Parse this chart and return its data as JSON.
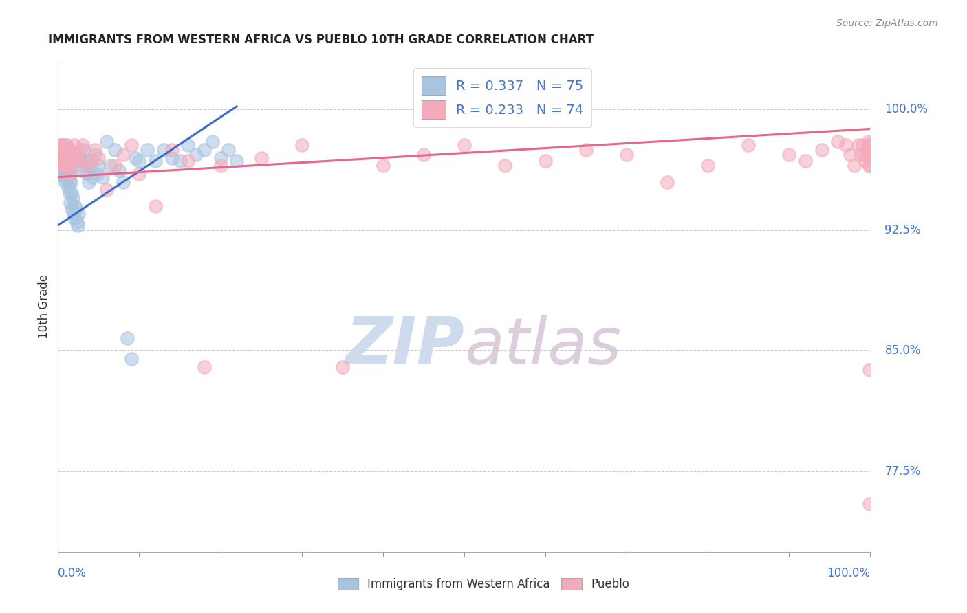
{
  "title": "IMMIGRANTS FROM WESTERN AFRICA VS PUEBLO 10TH GRADE CORRELATION CHART",
  "source": "Source: ZipAtlas.com",
  "ylabel": "10th Grade",
  "ytick_labels": [
    "77.5%",
    "85.0%",
    "92.5%",
    "100.0%"
  ],
  "ytick_values": [
    0.775,
    0.85,
    0.925,
    1.0
  ],
  "xlim": [
    0.0,
    1.0
  ],
  "ylim": [
    0.725,
    1.03
  ],
  "legend1_label": "R = 0.337   N = 75",
  "legend2_label": "R = 0.233   N = 74",
  "legend_x_label": "Immigrants from Western Africa",
  "legend_y_label": "Pueblo",
  "blue_color": "#A8C4E0",
  "pink_color": "#F4AABB",
  "blue_line_color": "#3B6CC7",
  "pink_line_color": "#E8668A",
  "title_color": "#222222",
  "axis_label_color": "#4477CC",
  "watermark_zip_color": "#C8D8EC",
  "watermark_atlas_color": "#D8C8D8",
  "blue_scatter_x": [
    0.001,
    0.002,
    0.002,
    0.003,
    0.003,
    0.004,
    0.004,
    0.005,
    0.005,
    0.006,
    0.006,
    0.007,
    0.007,
    0.008,
    0.008,
    0.009,
    0.009,
    0.01,
    0.01,
    0.011,
    0.011,
    0.012,
    0.012,
    0.013,
    0.013,
    0.014,
    0.014,
    0.015,
    0.015,
    0.016,
    0.017,
    0.017,
    0.018,
    0.019,
    0.02,
    0.021,
    0.022,
    0.023,
    0.024,
    0.025,
    0.026,
    0.027,
    0.028,
    0.03,
    0.032,
    0.034,
    0.036,
    0.038,
    0.04,
    0.042,
    0.045,
    0.048,
    0.05,
    0.055,
    0.06,
    0.065,
    0.07,
    0.075,
    0.08,
    0.085,
    0.09,
    0.095,
    0.1,
    0.11,
    0.12,
    0.13,
    0.14,
    0.15,
    0.16,
    0.17,
    0.18,
    0.19,
    0.2,
    0.21,
    0.22
  ],
  "blue_scatter_y": [
    0.96,
    0.97,
    0.962,
    0.975,
    0.968,
    0.972,
    0.965,
    0.978,
    0.96,
    0.97,
    0.963,
    0.968,
    0.958,
    0.975,
    0.962,
    0.97,
    0.955,
    0.968,
    0.978,
    0.96,
    0.965,
    0.958,
    0.952,
    0.96,
    0.965,
    0.955,
    0.948,
    0.96,
    0.942,
    0.955,
    0.948,
    0.938,
    0.945,
    0.935,
    0.932,
    0.94,
    0.938,
    0.93,
    0.928,
    0.935,
    0.968,
    0.97,
    0.965,
    0.962,
    0.975,
    0.968,
    0.96,
    0.955,
    0.965,
    0.958,
    0.972,
    0.96,
    0.965,
    0.958,
    0.98,
    0.965,
    0.975,
    0.962,
    0.955,
    0.858,
    0.845,
    0.97,
    0.968,
    0.975,
    0.968,
    0.975,
    0.97,
    0.968,
    0.978,
    0.972,
    0.975,
    0.98,
    0.97,
    0.975,
    0.968
  ],
  "pink_scatter_x": [
    0.001,
    0.002,
    0.003,
    0.003,
    0.004,
    0.005,
    0.006,
    0.007,
    0.008,
    0.009,
    0.01,
    0.011,
    0.012,
    0.013,
    0.014,
    0.015,
    0.016,
    0.018,
    0.02,
    0.022,
    0.025,
    0.028,
    0.03,
    0.035,
    0.04,
    0.045,
    0.05,
    0.06,
    0.07,
    0.08,
    0.09,
    0.1,
    0.12,
    0.14,
    0.16,
    0.18,
    0.2,
    0.25,
    0.3,
    0.35,
    0.4,
    0.45,
    0.5,
    0.55,
    0.6,
    0.65,
    0.7,
    0.75,
    0.8,
    0.85,
    0.9,
    0.92,
    0.94,
    0.96,
    0.97,
    0.975,
    0.98,
    0.985,
    0.988,
    0.99,
    0.992,
    0.994,
    0.996,
    0.998,
    0.999,
    0.999,
    0.999,
    0.999,
    0.999,
    0.999,
    0.999,
    0.999,
    0.999,
    0.999
  ],
  "pink_scatter_y": [
    0.978,
    0.968,
    0.975,
    0.965,
    0.97,
    0.978,
    0.972,
    0.965,
    0.975,
    0.968,
    0.972,
    0.978,
    0.965,
    0.968,
    0.975,
    0.96,
    0.97,
    0.968,
    0.978,
    0.972,
    0.968,
    0.975,
    0.978,
    0.965,
    0.968,
    0.975,
    0.97,
    0.95,
    0.965,
    0.972,
    0.978,
    0.96,
    0.94,
    0.975,
    0.968,
    0.84,
    0.965,
    0.97,
    0.978,
    0.84,
    0.965,
    0.972,
    0.978,
    0.965,
    0.968,
    0.975,
    0.972,
    0.955,
    0.965,
    0.978,
    0.972,
    0.968,
    0.975,
    0.98,
    0.978,
    0.972,
    0.965,
    0.978,
    0.972,
    0.978,
    0.972,
    0.968,
    0.975,
    0.98,
    0.978,
    0.972,
    0.965,
    0.978,
    0.972,
    0.965,
    0.978,
    0.972,
    0.755,
    0.838
  ],
  "blue_line_x0": 0.0,
  "blue_line_x1": 0.22,
  "blue_line_y0": 0.928,
  "blue_line_y1": 1.002,
  "pink_line_x0": 0.0,
  "pink_line_x1": 1.0,
  "pink_line_y0": 0.958,
  "pink_line_y1": 0.988,
  "grid_color": "#CCCCCC",
  "background_color": "#FFFFFF"
}
